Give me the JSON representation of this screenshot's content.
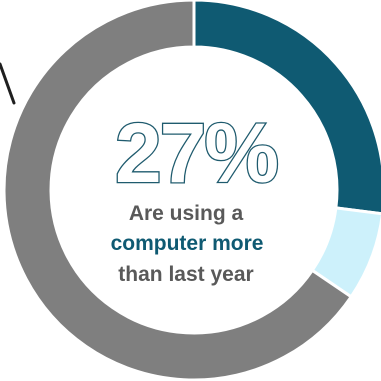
{
  "chart_data": {
    "type": "pie",
    "style": "donut",
    "slices": [
      {
        "value": 27,
        "color": "#0f5a72"
      },
      {
        "value": 7.5,
        "color": "#cdf1fb"
      },
      {
        "value": 65.5,
        "color": "#7f7f7f"
      }
    ],
    "center_value": "27%",
    "center_text": {
      "line1": "Are using a",
      "line2": "computer more",
      "line3": "than last year"
    }
  },
  "colors": {
    "accent": "#0f5a72",
    "light": "#cdf1fb",
    "gray": "#7f7f7f",
    "text_dark": "#595959",
    "outline": "#1f5b6e"
  }
}
